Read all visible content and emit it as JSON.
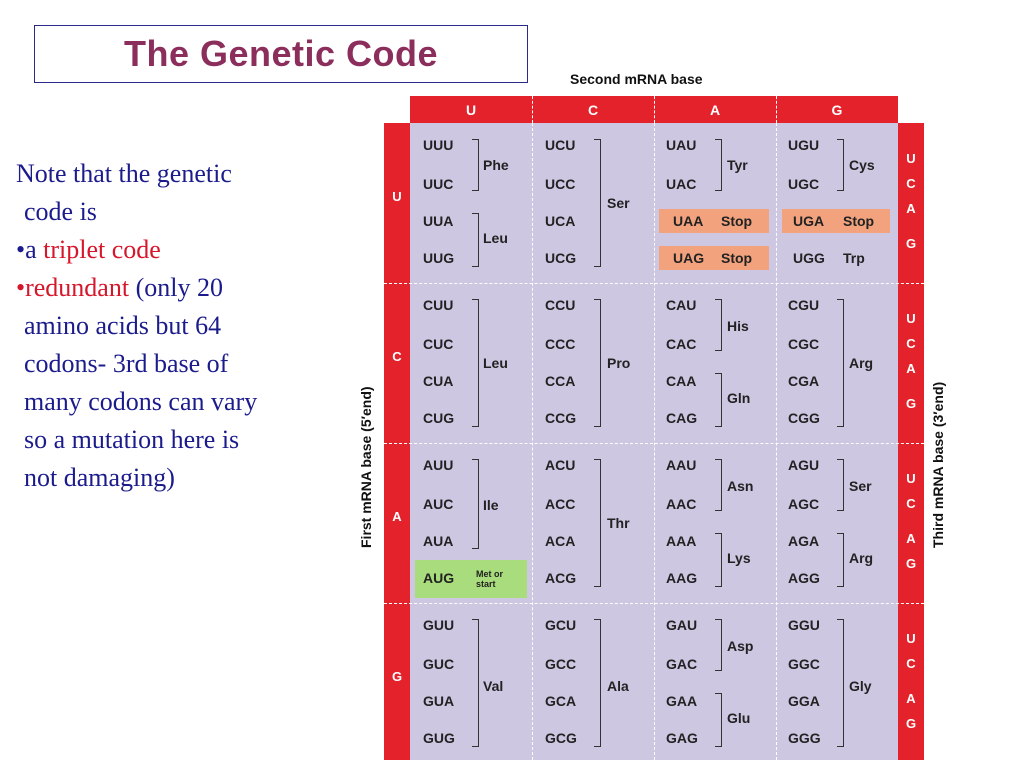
{
  "title": "The Genetic Code",
  "note": {
    "line1": "Note that the genetic",
    "line2": "code is",
    "bullet1_prefix": "•a ",
    "bullet1_red": "triplet code",
    "bullet2_red": "•redundant",
    "bullet2_rest": " (only 20",
    "line5": "amino acids but 64",
    "line6": "codons- 3rd base of",
    "line7": "many codons can vary",
    "line8": "so a mutation here is",
    "line9": "not damaging)"
  },
  "table": {
    "second_base_label": "Second mRNA base",
    "first_base_label": "First mRNA base (5′end)",
    "third_base_label": "Third mRNA base (3′end)",
    "bases": [
      "U",
      "C",
      "A",
      "G"
    ],
    "codons": [
      [
        "UUU",
        "UUC",
        "UUA",
        "UUG",
        "UCU",
        "UCC",
        "UCA",
        "UCG",
        "UAU",
        "UAC",
        "UAA",
        "UAG",
        "UGU",
        "UGC",
        "UGA",
        "UGG"
      ],
      [
        "CUU",
        "CUC",
        "CUA",
        "CUG",
        "CCU",
        "CCC",
        "CCA",
        "CCG",
        "CAU",
        "CAC",
        "CAA",
        "CAG",
        "CGU",
        "CGC",
        "CGA",
        "CGG"
      ],
      [
        "AUU",
        "AUC",
        "AUA",
        "AUG",
        "ACU",
        "ACC",
        "ACA",
        "ACG",
        "AAU",
        "AAC",
        "AAA",
        "AAG",
        "AGU",
        "AGC",
        "AGA",
        "AGG"
      ],
      [
        "GUU",
        "GUC",
        "GUA",
        "GUG",
        "GCU",
        "GCC",
        "GCA",
        "GCG",
        "GAU",
        "GAC",
        "GAA",
        "GAG",
        "GGU",
        "GGC",
        "GGA",
        "GGG"
      ]
    ],
    "amino_acids": {
      "phe": "Phe",
      "leu1": "Leu",
      "ser1": "Ser",
      "tyr": "Tyr",
      "stop1": "Stop",
      "stop2": "Stop",
      "cys": "Cys",
      "stop3": "Stop",
      "trp": "Trp",
      "leu2": "Leu",
      "pro": "Pro",
      "his": "His",
      "gln": "Gln",
      "arg1": "Arg",
      "ile": "Ile",
      "met": "Met or start",
      "thr": "Thr",
      "asn": "Asn",
      "lys": "Lys",
      "ser2": "Ser",
      "arg2": "Arg",
      "val": "Val",
      "ala": "Ala",
      "asp": "Asp",
      "glu": "Glu",
      "gly": "Gly"
    },
    "colors": {
      "header_red": "#e3222b",
      "panel": "#cdc7e2",
      "stop": "#f2a37e",
      "start": "#a8dc7c"
    }
  }
}
